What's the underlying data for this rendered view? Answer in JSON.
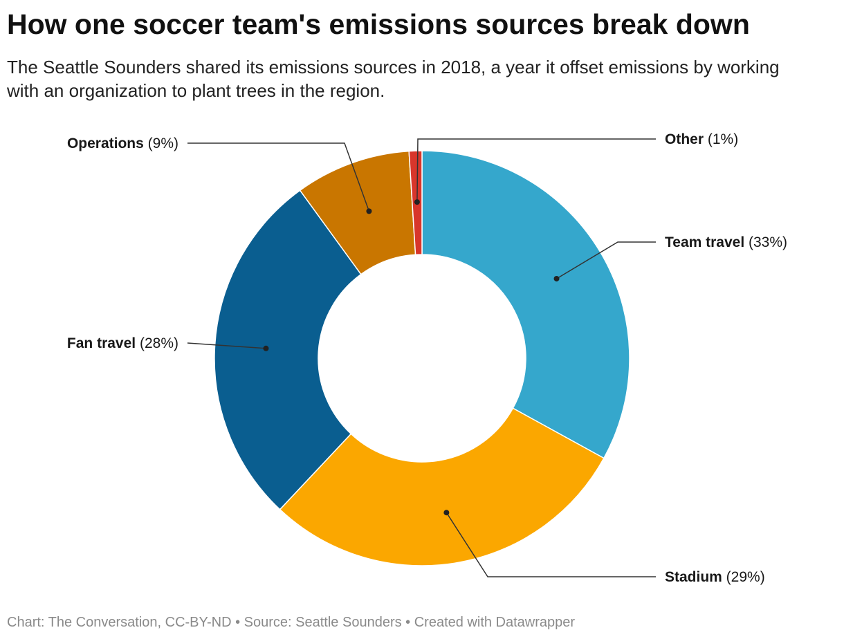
{
  "title": "How one soccer team's emissions sources break down",
  "subtitle": "The Seattle Sounders shared its emissions sources in 2018, a year it offset emissions by working with an organization to plant trees in the region.",
  "footer": "Chart: The Conversation, CC-BY-ND • Source: Seattle Sounders • Created with Datawrapper",
  "chart_data": {
    "type": "pie",
    "variant": "donut",
    "title": "How one soccer team's emissions sources break down",
    "subtitle": "The Seattle Sounders shared its emissions sources in 2018, a year it offset emissions by working with an organization to plant trees in the region.",
    "start": "12 o'clock, clockwise",
    "legend": "none",
    "slices": [
      {
        "label": "Team travel",
        "value": 33,
        "display": "(33%)",
        "color": "#35a7cc"
      },
      {
        "label": "Stadium",
        "value": 29,
        "display": "(29%)",
        "color": "#fba700"
      },
      {
        "label": "Fan travel",
        "value": 28,
        "display": "(28%)",
        "color": "#0a5e90"
      },
      {
        "label": "Operations",
        "value": 9,
        "display": "(9%)",
        "color": "#c97600"
      },
      {
        "label": "Other",
        "value": 1,
        "display": "(1%)",
        "color": "#d8362b"
      }
    ]
  }
}
